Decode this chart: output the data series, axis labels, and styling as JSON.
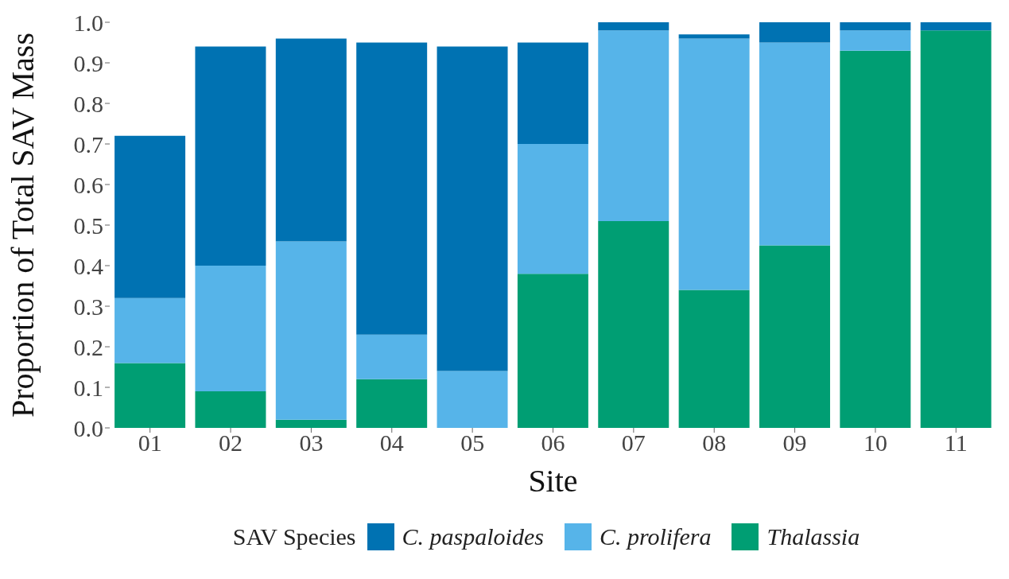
{
  "chart_data": {
    "type": "bar",
    "stacked": true,
    "xlabel": "Site",
    "ylabel": "Proportion of Total SAV Mass",
    "legend_title": "SAV Species",
    "categories": [
      "01",
      "02",
      "03",
      "04",
      "05",
      "06",
      "07",
      "08",
      "09",
      "10",
      "11"
    ],
    "series": [
      {
        "name": "Thalassia",
        "color": "#009e73",
        "values": [
          0.16,
          0.09,
          0.02,
          0.12,
          0,
          0.38,
          0.51,
          0.34,
          0.45,
          0.93,
          0.98
        ]
      },
      {
        "name": "C. prolifera",
        "color": "#56b4e9",
        "values": [
          0.16,
          0.31,
          0.44,
          0.11,
          0.14,
          0.32,
          0.47,
          0.62,
          0.5,
          0.05,
          0
        ]
      },
      {
        "name": "C. paspaloides",
        "color": "#0072b2",
        "values": [
          0.4,
          0.54,
          0.5,
          0.72,
          0.8,
          0.25,
          0.02,
          0.01,
          0.05,
          0.02,
          0.02
        ]
      }
    ],
    "ylim": [
      0,
      1
    ],
    "yticks": [
      {
        "value": 0,
        "label": "0.0"
      },
      {
        "value": 0.1,
        "label": "0.1"
      },
      {
        "value": 0.2,
        "label": "0.2"
      },
      {
        "value": 0.3,
        "label": "0.3"
      },
      {
        "value": 0.4,
        "label": "0.4"
      },
      {
        "value": 0.5,
        "label": "0.5"
      },
      {
        "value": 0.6,
        "label": "0.6"
      },
      {
        "value": 0.7,
        "label": "0.7"
      },
      {
        "value": 0.8,
        "label": "0.8"
      },
      {
        "value": 0.9,
        "label": "0.9"
      },
      {
        "value": 1,
        "label": "1.0"
      }
    ],
    "grid": false,
    "legend": "bottom"
  }
}
